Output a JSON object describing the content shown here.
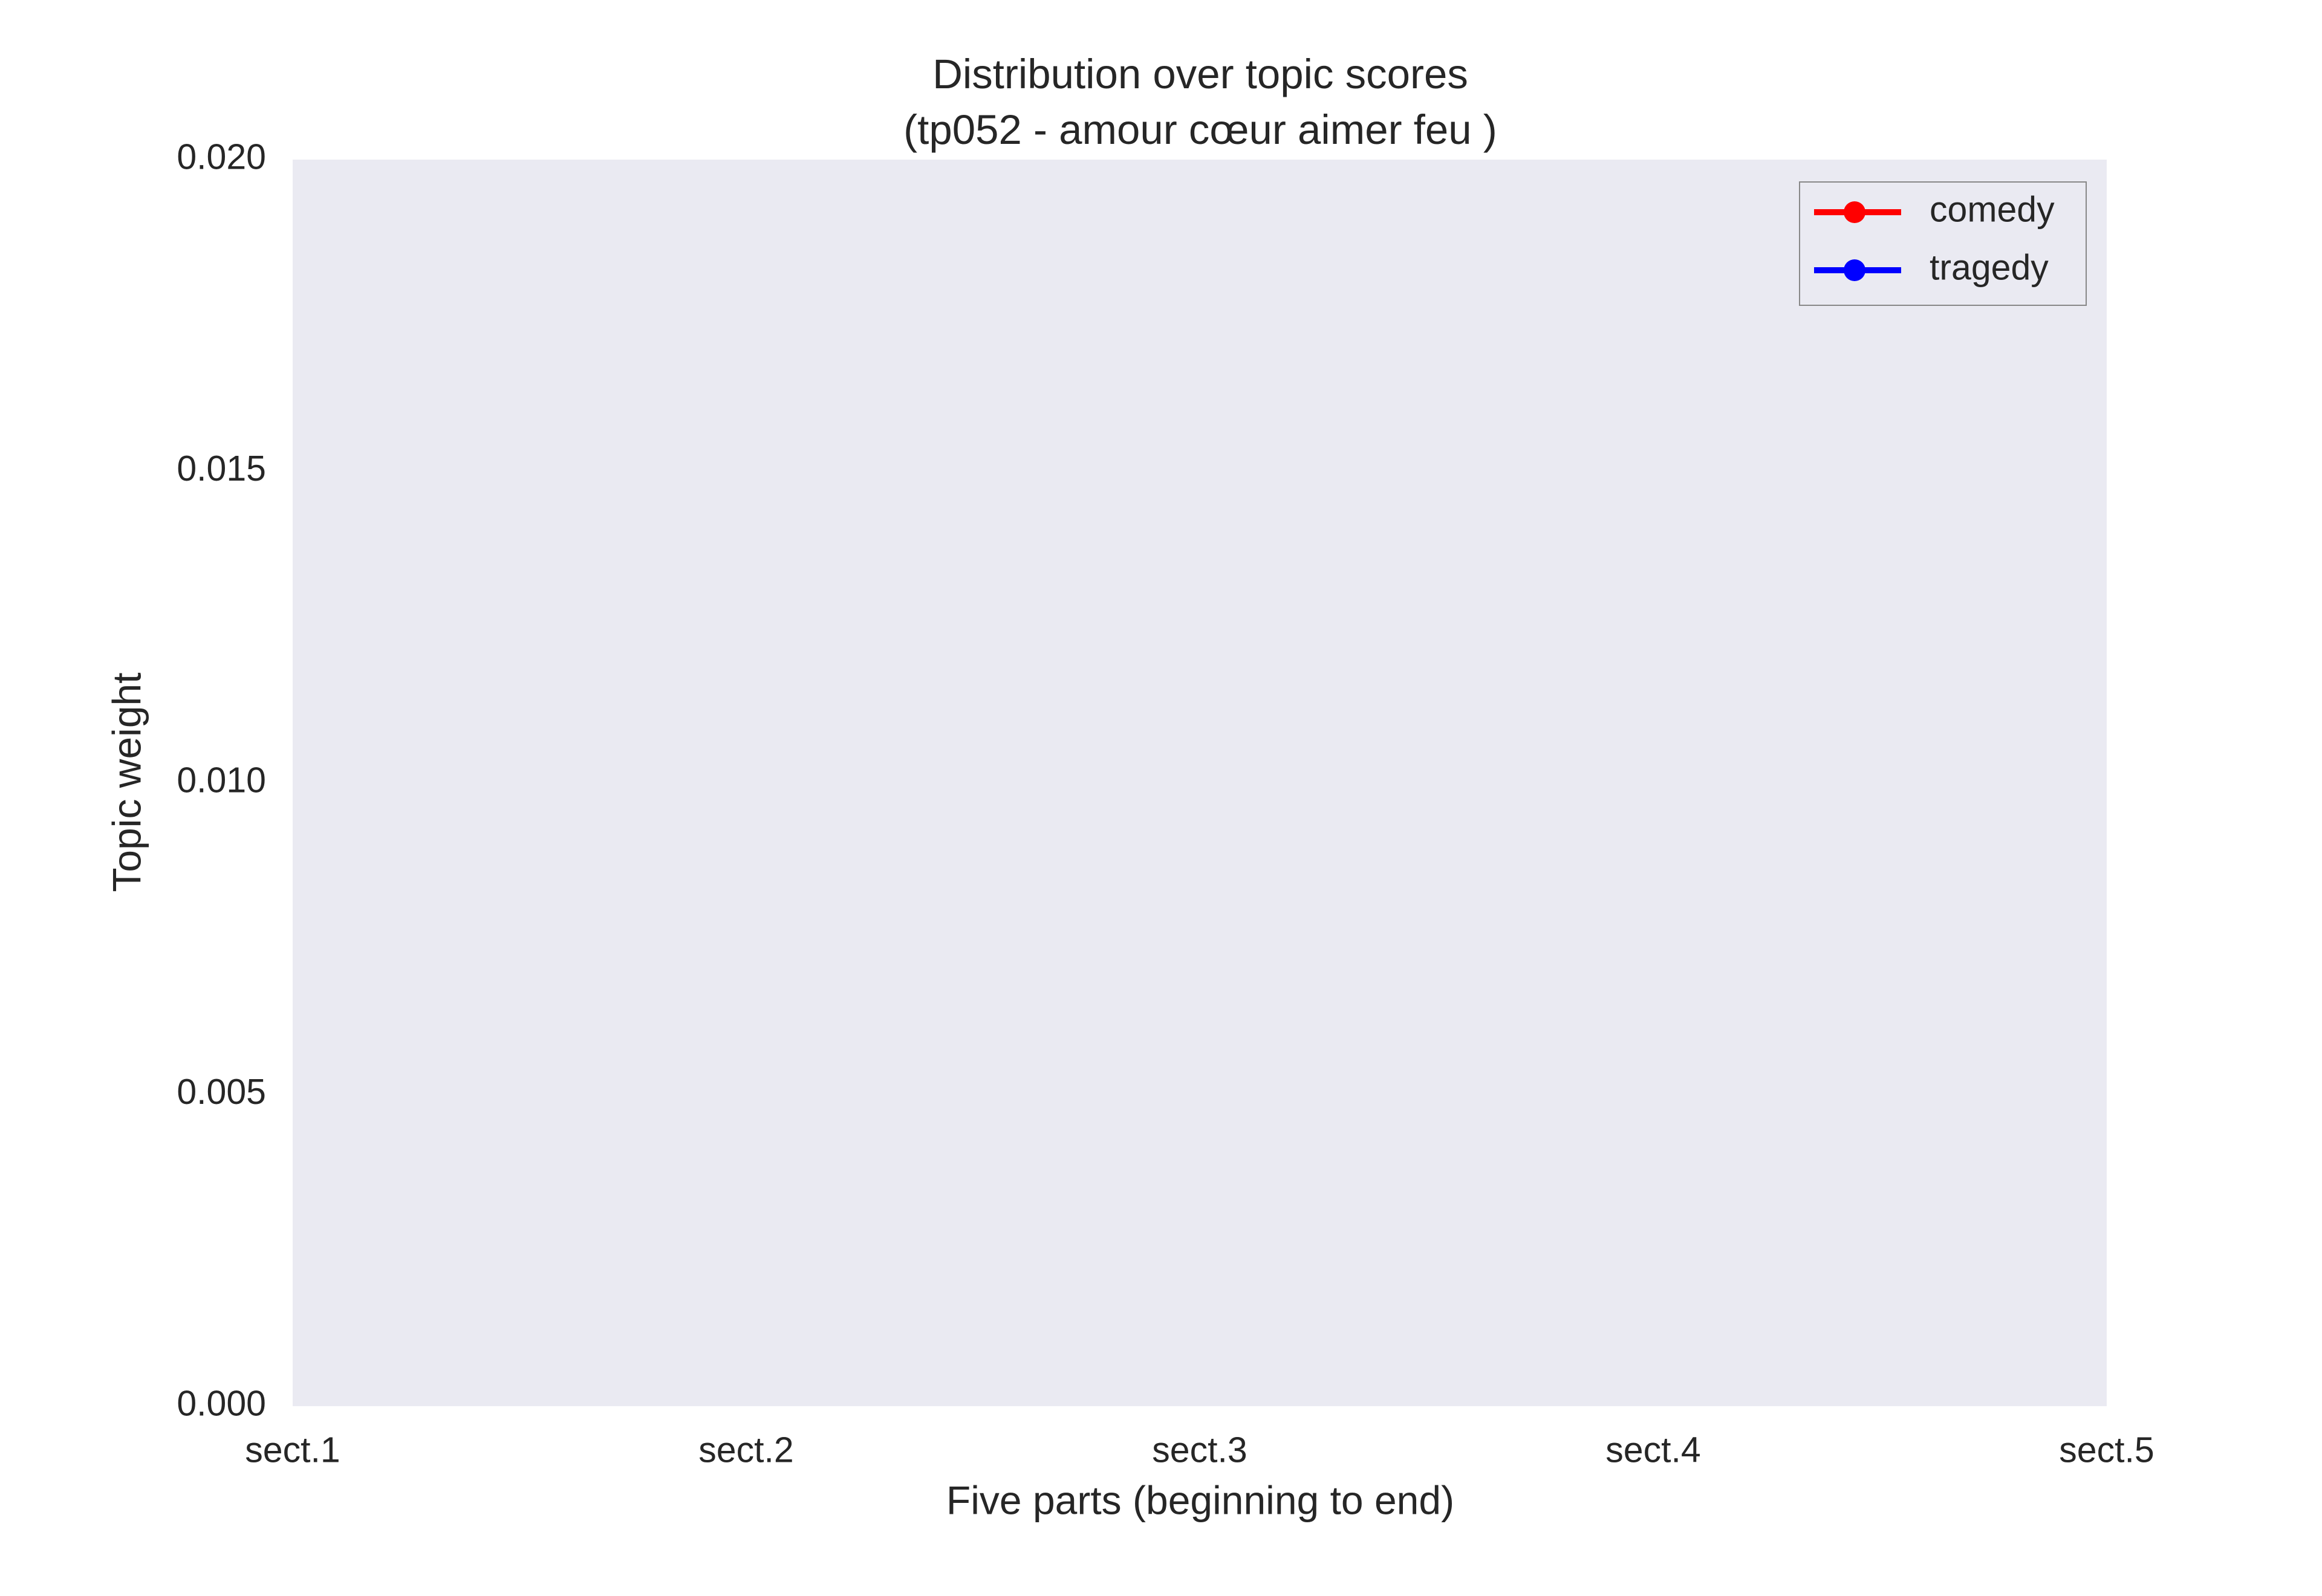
{
  "chart_data": {
    "type": "line",
    "title": [
      "Distribution over topic scores",
      "(tp052 - amour cœur aimer feu )"
    ],
    "x_label": "Five parts (beginning to end)",
    "y_label": "Topic weight",
    "categories": [
      "sect.1",
      "sect.2",
      "sect.3",
      "sect.4",
      "sect.5"
    ],
    "series": [
      {
        "name": "comedy",
        "color": "#ff0000",
        "values": [
          null,
          null,
          null,
          null,
          null
        ]
      },
      {
        "name": "tragedy",
        "color": "#0000ff",
        "values": [
          null,
          null,
          null,
          null,
          null
        ]
      }
    ],
    "ylim": [
      0,
      0.02
    ],
    "yticks": [
      {
        "value": 0,
        "label": "0.000"
      },
      0.005,
      {
        "value": 0.01,
        "label": "0.010"
      },
      0.015,
      {
        "value": 0.02,
        "label": "0.020"
      }
    ],
    "grid": false,
    "legend": "upper right"
  }
}
